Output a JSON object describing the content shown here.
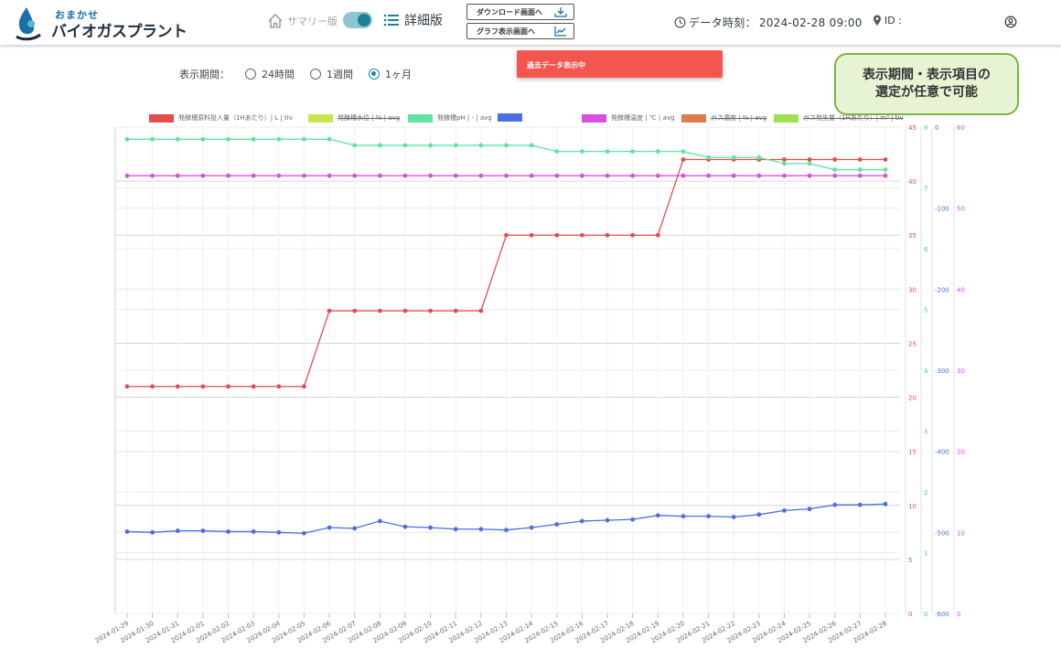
{
  "header": {
    "logo_top": "おまかせ",
    "logo_main": "バイオガスプラント",
    "summary_label": "サマリー版",
    "detail_label": "詳細版",
    "download_button": "ダウンロード画面へ",
    "graph_button": "グラフ表示画面へ",
    "datetime_label": "データ時刻：",
    "datetime_value": "2024-02-28 09:00",
    "id_label": "ID :"
  },
  "period": {
    "label": "表示期間：",
    "options": [
      "24時間",
      "1週間",
      "1ヶ月"
    ],
    "selected": "1ヶ月"
  },
  "toast": "過去データ表示中",
  "callout": {
    "line1": "表示期間・表示項目の",
    "line2": "選定が任意で可能"
  },
  "legend": [
    {
      "label": "発酵槽原料投入量（1Hあたり）| L | tiv",
      "color": "#e54c4c",
      "hidden": false
    },
    {
      "label": "発酵槽水位 | % | avg",
      "color": "#c6e64e",
      "hidden": true
    },
    {
      "label": "発酵槽pH | - | avg",
      "color": "#5ee3a1",
      "hidden": false
    },
    {
      "label": "",
      "color": "#4b6fe0",
      "hidden": false
    },
    {
      "label": "発酵槽温度 | ℃ | avg",
      "color": "#d94fe0",
      "hidden": false
    },
    {
      "label": "ガス濃度 | % | avg",
      "color": "#e07a4f",
      "hidden": true
    },
    {
      "label": "ガス発生量（1Hあたり）| m³ | tiv",
      "color": "#9fe052",
      "hidden": true
    }
  ],
  "chart_data": {
    "type": "line",
    "x": [
      "2024-01-29",
      "2024-01-30",
      "2024-01-31",
      "2024-02-01",
      "2024-02-02",
      "2024-02-03",
      "2024-02-04",
      "2024-02-05",
      "2024-02-06",
      "2024-02-07",
      "2024-02-08",
      "2024-02-09",
      "2024-02-10",
      "2024-02-11",
      "2024-02-12",
      "2024-02-13",
      "2024-02-14",
      "2024-02-15",
      "2024-02-16",
      "2024-02-17",
      "2024-02-18",
      "2024-02-19",
      "2024-02-20",
      "2024-02-21",
      "2024-02-22",
      "2024-02-23",
      "2024-02-24",
      "2024-02-25",
      "2024-02-26",
      "2024-02-27",
      "2024-02-28"
    ],
    "axes": [
      {
        "id": "red",
        "ticks": [
          0,
          5,
          10,
          15,
          20,
          25,
          30,
          35,
          40,
          45
        ],
        "range": [
          0,
          45
        ],
        "color": "#e54c4c"
      },
      {
        "id": "green",
        "ticks": [
          0,
          1,
          2,
          3,
          4,
          5,
          6,
          7,
          8
        ],
        "range": [
          0,
          8
        ],
        "color": "#3fcf8e"
      },
      {
        "id": "blue",
        "ticks": [
          -600,
          -500,
          -400,
          -300,
          -200,
          -100,
          0
        ],
        "range": [
          -600,
          0
        ],
        "color": "#4b6fe0"
      },
      {
        "id": "magenta",
        "ticks": [
          0,
          10,
          20,
          30,
          40,
          50,
          60
        ],
        "range": [
          0,
          60
        ],
        "color": "#d94fe0"
      }
    ],
    "series": [
      {
        "name": "発酵槽原料投入量（1Hあたり）| L | tiv",
        "axis": "red",
        "color": "#e54c4c",
        "values": [
          21,
          21,
          21,
          21,
          21,
          21,
          21,
          21,
          28,
          28,
          28,
          28,
          28,
          28,
          28,
          35,
          35,
          35,
          35,
          35,
          35,
          35,
          42,
          42,
          42,
          42,
          42,
          42,
          42,
          42,
          42
        ]
      },
      {
        "name": "発酵槽pH | - | avg",
        "axis": "green",
        "color": "#5ee3a1",
        "values": [
          7.8,
          7.8,
          7.8,
          7.8,
          7.8,
          7.8,
          7.8,
          7.8,
          7.8,
          7.7,
          7.7,
          7.7,
          7.7,
          7.7,
          7.7,
          7.7,
          7.7,
          7.6,
          7.6,
          7.6,
          7.6,
          7.6,
          7.6,
          7.5,
          7.5,
          7.5,
          7.4,
          7.4,
          7.3,
          7.3,
          7.3
        ]
      },
      {
        "name": "",
        "axis": "blue",
        "color": "#4b6fe0",
        "values": [
          -499,
          -500,
          -498,
          -498,
          -499,
          -499,
          -500,
          -501,
          -494,
          -495,
          -486,
          -493,
          -494,
          -496,
          -496,
          -497,
          -494,
          -490,
          -486,
          -485,
          -484,
          -479,
          -480,
          -480,
          -481,
          -478,
          -473,
          -471,
          -466,
          -466,
          -465
        ]
      },
      {
        "name": "発酵槽温度 | ℃ | avg",
        "axis": "magenta",
        "color": "#d94fe0",
        "values": [
          54,
          54,
          54,
          54,
          54,
          54,
          54,
          54,
          54,
          54,
          54,
          54,
          54,
          54,
          54,
          54,
          54,
          54,
          54,
          54,
          54,
          54,
          54,
          54,
          54,
          54,
          54,
          54,
          54,
          54,
          54
        ]
      }
    ]
  }
}
